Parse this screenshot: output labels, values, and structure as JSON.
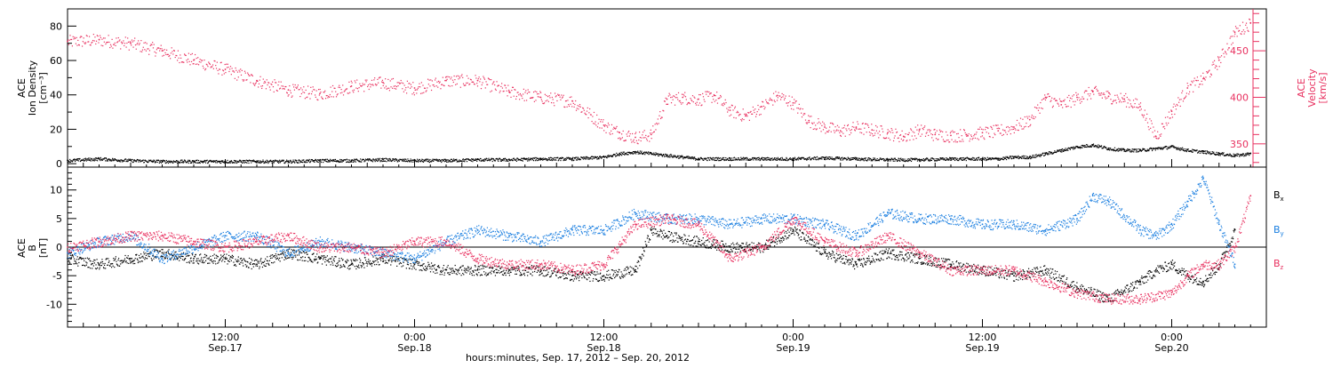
{
  "colors": {
    "black": "#000000",
    "pink": "#e8305f",
    "blue": "#1b7fe0"
  },
  "top_panel": {
    "left_label_lines": [
      "ACE",
      "Ion Density",
      "[cm⁻³]"
    ],
    "right_label_lines": [
      "ACE",
      "Velocity",
      "[km/s]"
    ]
  },
  "bottom_panel": {
    "left_label_lines": [
      "ACE",
      "B",
      "[nT]"
    ],
    "legend": [
      {
        "base": "B",
        "sub": "x",
        "color": "#000000"
      },
      {
        "base": "B",
        "sub": "y",
        "color": "#1b7fe0"
      },
      {
        "base": "B",
        "sub": "z",
        "color": "#e8305f"
      }
    ]
  },
  "x_axis": {
    "title": "hours:minutes, Sep. 17, 2012 – Sep. 20, 2012",
    "ticks": [
      {
        "hour": 12,
        "time": "12:00",
        "date": "Sep.17"
      },
      {
        "hour": 24,
        "time": "0:00",
        "date": "Sep.18"
      },
      {
        "hour": 36,
        "time": "12:00",
        "date": "Sep.18"
      },
      {
        "hour": 48,
        "time": "0:00",
        "date": "Sep.19"
      },
      {
        "hour": 60,
        "time": "12:00",
        "date": "Sep.19"
      },
      {
        "hour": 72,
        "time": "0:00",
        "date": "Sep.20"
      }
    ]
  },
  "chart_data": [
    {
      "type": "scatter",
      "x_unit": "hours since Sep. 17 2012 00:00",
      "xlim": [
        2,
        78
      ],
      "ylim": [
        -2,
        90
      ],
      "y_ticks": [
        0,
        20,
        40,
        60,
        80
      ],
      "y2lim": [
        325,
        495
      ],
      "y2_ticks": [
        350,
        400,
        450
      ],
      "series": [
        {
          "name": "Ion Density",
          "axis": "left",
          "color": "#000000",
          "x": [
            2,
            4,
            6,
            8,
            10,
            12,
            14,
            16,
            18,
            20,
            22,
            24,
            26,
            28,
            30,
            32,
            34,
            36,
            37,
            38,
            39,
            40,
            42,
            44,
            46,
            48,
            50,
            52,
            54,
            56,
            58,
            60,
            61,
            62,
            63,
            64,
            65,
            66,
            67,
            68,
            69,
            70,
            71,
            72,
            73,
            74,
            75,
            76,
            77
          ],
          "y": [
            2,
            3,
            2,
            1.5,
            1.5,
            1.5,
            1.5,
            1.5,
            2,
            2,
            2.5,
            2,
            2,
            2.5,
            2.5,
            3,
            3,
            4,
            6,
            7,
            6,
            5,
            3,
            3,
            3,
            3,
            3.5,
            3,
            2.5,
            2.5,
            3,
            3,
            3,
            4,
            4,
            6,
            8,
            10,
            11,
            9,
            8,
            8,
            9,
            10,
            8,
            7,
            6,
            5,
            6
          ]
        },
        {
          "name": "Velocity",
          "axis": "right",
          "color": "#e8305f",
          "x": [
            2,
            4,
            6,
            8,
            10,
            12,
            14,
            16,
            18,
            20,
            22,
            24,
            26,
            28,
            30,
            32,
            34,
            36,
            37,
            38,
            39,
            40,
            41,
            42,
            43,
            44,
            45,
            46,
            47,
            48,
            49,
            50,
            51,
            52,
            53,
            54,
            55,
            56,
            57,
            58,
            59,
            60,
            61,
            62,
            63,
            64,
            65,
            66,
            67,
            68,
            69,
            70,
            71,
            72,
            73,
            74,
            75,
            76,
            77
          ],
          "y": [
            460,
            462,
            458,
            450,
            440,
            430,
            418,
            408,
            404,
            412,
            416,
            410,
            418,
            418,
            406,
            400,
            396,
            370,
            362,
            357,
            360,
            398,
            400,
            398,
            402,
            386,
            380,
            390,
            402,
            394,
            375,
            368,
            364,
            368,
            365,
            362,
            358,
            365,
            360,
            359,
            360,
            362,
            364,
            368,
            376,
            400,
            392,
            400,
            406,
            401,
            398,
            390,
            358,
            385,
            410,
            420,
            440,
            470,
            480
          ]
        }
      ]
    },
    {
      "type": "scatter",
      "x_unit": "hours since Sep. 17 2012 00:00",
      "xlim": [
        2,
        78
      ],
      "ylim": [
        -14,
        14
      ],
      "y_ticks": [
        -10,
        -5,
        0,
        5,
        10
      ],
      "series": [
        {
          "name": "Bx",
          "color": "#000000",
          "x": [
            2,
            4,
            6,
            8,
            10,
            12,
            14,
            16,
            18,
            20,
            22,
            24,
            26,
            28,
            30,
            32,
            34,
            36,
            38,
            39,
            40,
            42,
            44,
            46,
            48,
            50,
            52,
            54,
            56,
            58,
            60,
            62,
            64,
            66,
            68,
            70,
            71,
            72,
            73,
            74,
            75,
            76
          ],
          "y": [
            -2,
            -3,
            -2,
            -1,
            -2,
            -2,
            -3,
            -1,
            -2,
            -3,
            -2,
            -3,
            -4,
            -4,
            -4,
            -4,
            -5,
            -5,
            -4,
            3,
            2,
            1,
            0,
            0,
            3,
            -1,
            -3,
            -1,
            -2,
            -3,
            -4,
            -5,
            -4,
            -7,
            -9,
            -6,
            -4,
            -3,
            -5,
            -6,
            -3,
            3
          ]
        },
        {
          "name": "By",
          "color": "#1b7fe0",
          "x": [
            2,
            4,
            6,
            8,
            10,
            12,
            14,
            16,
            18,
            20,
            22,
            24,
            26,
            28,
            30,
            32,
            34,
            36,
            38,
            40,
            42,
            44,
            46,
            48,
            50,
            52,
            54,
            56,
            58,
            60,
            62,
            64,
            66,
            67,
            68,
            70,
            71,
            72,
            73,
            74,
            75,
            76
          ],
          "y": [
            -1,
            1,
            2,
            -2,
            0,
            2,
            2,
            -1,
            1,
            0,
            -1,
            -2,
            1,
            3,
            2,
            1,
            3,
            3,
            6,
            5,
            5,
            4,
            5,
            5,
            4,
            2,
            6,
            5,
            5,
            4,
            4,
            3,
            5,
            9,
            8,
            3,
            2,
            4,
            8,
            12,
            4,
            -3
          ]
        },
        {
          "name": "Bz",
          "color": "#e8305f",
          "x": [
            2,
            4,
            6,
            8,
            10,
            12,
            14,
            16,
            18,
            20,
            22,
            24,
            26,
            28,
            30,
            32,
            34,
            36,
            38,
            40,
            42,
            44,
            46,
            48,
            50,
            52,
            54,
            56,
            58,
            60,
            62,
            64,
            66,
            68,
            70,
            72,
            73,
            74,
            75,
            76,
            77
          ],
          "y": [
            0,
            1,
            2,
            2,
            1,
            0,
            1,
            2,
            0,
            0,
            -1,
            1,
            1,
            -2,
            -3,
            -3,
            -4,
            -3,
            4,
            5,
            4,
            -2,
            0,
            5,
            1,
            -1,
            2,
            -1,
            -4,
            -4,
            -4,
            -6,
            -8,
            -9,
            -9,
            -8,
            -5,
            -3,
            -3,
            0,
            9
          ]
        }
      ]
    }
  ]
}
